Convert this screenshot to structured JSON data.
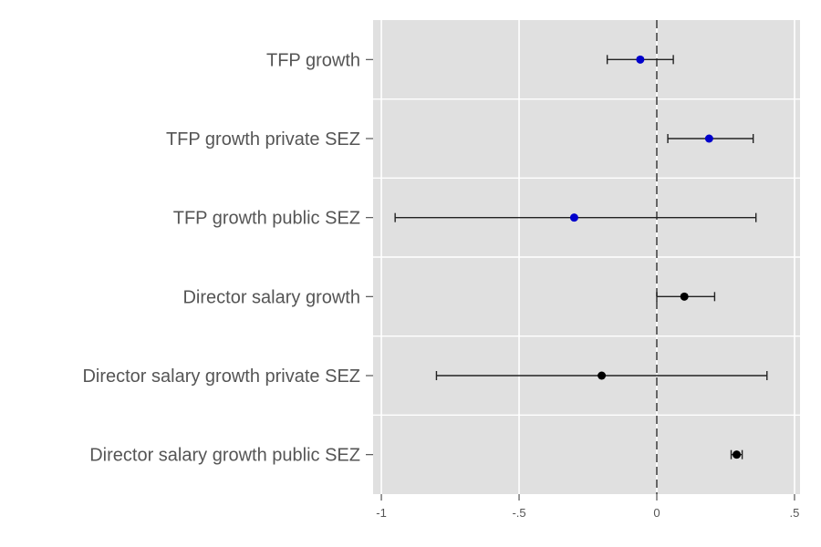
{
  "chart_data": {
    "type": "scatter",
    "style": "coefficient-plot",
    "categories": [
      "TFP growth",
      "TFP growth private SEZ",
      "TFP growth public SEZ",
      "Director salary growth",
      "Director salary growth private SEZ",
      "Director salary growth public SEZ"
    ],
    "estimates": [
      -0.06,
      0.19,
      -0.3,
      0.1,
      -0.2,
      0.29
    ],
    "ci_low": [
      -0.18,
      0.04,
      -0.95,
      0.0,
      -0.8,
      0.27
    ],
    "ci_high": [
      0.06,
      0.35,
      0.36,
      0.21,
      0.4,
      0.31
    ],
    "point_colors": [
      "#0000cc",
      "#0000cc",
      "#0000cc",
      "#000000",
      "#000000",
      "#000000"
    ],
    "xlim": [
      -1.03,
      0.52
    ],
    "x_ticks": [
      -1,
      -0.5,
      0,
      0.5
    ],
    "x_tick_labels": [
      "-1",
      "-.5",
      "0",
      ".5"
    ],
    "reference_line_x": 0,
    "title": "",
    "xlabel": "",
    "ylabel": "",
    "grid": true,
    "panel_background": "#e0e0e0",
    "grid_color": "#ffffff",
    "text_color": "#555555"
  }
}
